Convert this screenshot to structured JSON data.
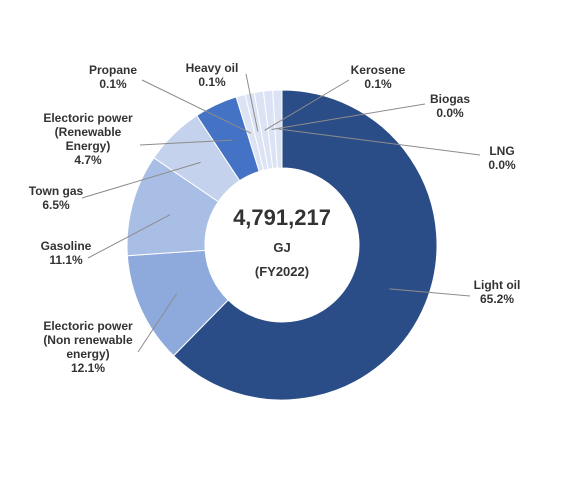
{
  "chart_data": {
    "type": "pie",
    "style": "donut",
    "center": {
      "total": "4,791,217",
      "unit": "GJ",
      "period": "(FY2022)"
    },
    "slices": [
      {
        "name": "Light oil",
        "lines": [
          "Light oil"
        ],
        "value": 65.2,
        "display": "65.2%",
        "color": "#2b4d87"
      },
      {
        "name": "Electoric power (Non renewable energy)",
        "lines": [
          "Electoric power",
          "(Non renewable",
          "energy)"
        ],
        "value": 12.1,
        "display": "12.1%",
        "color": "#8eaadc"
      },
      {
        "name": "Gasoline",
        "lines": [
          "Gasoline"
        ],
        "value": 11.1,
        "display": "11.1%",
        "color": "#a9bee5"
      },
      {
        "name": "Town gas",
        "lines": [
          "Town gas"
        ],
        "value": 6.5,
        "display": "6.5%",
        "color": "#c4d2ed"
      },
      {
        "name": "Electoric power (Renewable Energy)",
        "lines": [
          "Electoric power",
          "(Renewable",
          "Energy)"
        ],
        "value": 4.7,
        "display": "4.7%",
        "color": "#4472c4"
      },
      {
        "name": "Propane",
        "lines": [
          "Propane"
        ],
        "value": 0.1,
        "display": "0.1%",
        "color": "#dbe3f4"
      },
      {
        "name": "Heavy oil",
        "lines": [
          "Heavy oil"
        ],
        "value": 0.1,
        "display": "0.1%",
        "color": "#dbe3f4"
      },
      {
        "name": "Kerosene",
        "lines": [
          "Kerosene"
        ],
        "value": 0.1,
        "display": "0.1%",
        "color": "#dbe3f4"
      },
      {
        "name": "Biogas",
        "lines": [
          "Biogas"
        ],
        "value": 0.0,
        "display": "0.0%",
        "color": "#dbe3f4"
      },
      {
        "name": "LNG",
        "lines": [
          "LNG"
        ],
        "value": 0.0,
        "display": "0.0%",
        "color": "#dbe3f4"
      }
    ]
  }
}
